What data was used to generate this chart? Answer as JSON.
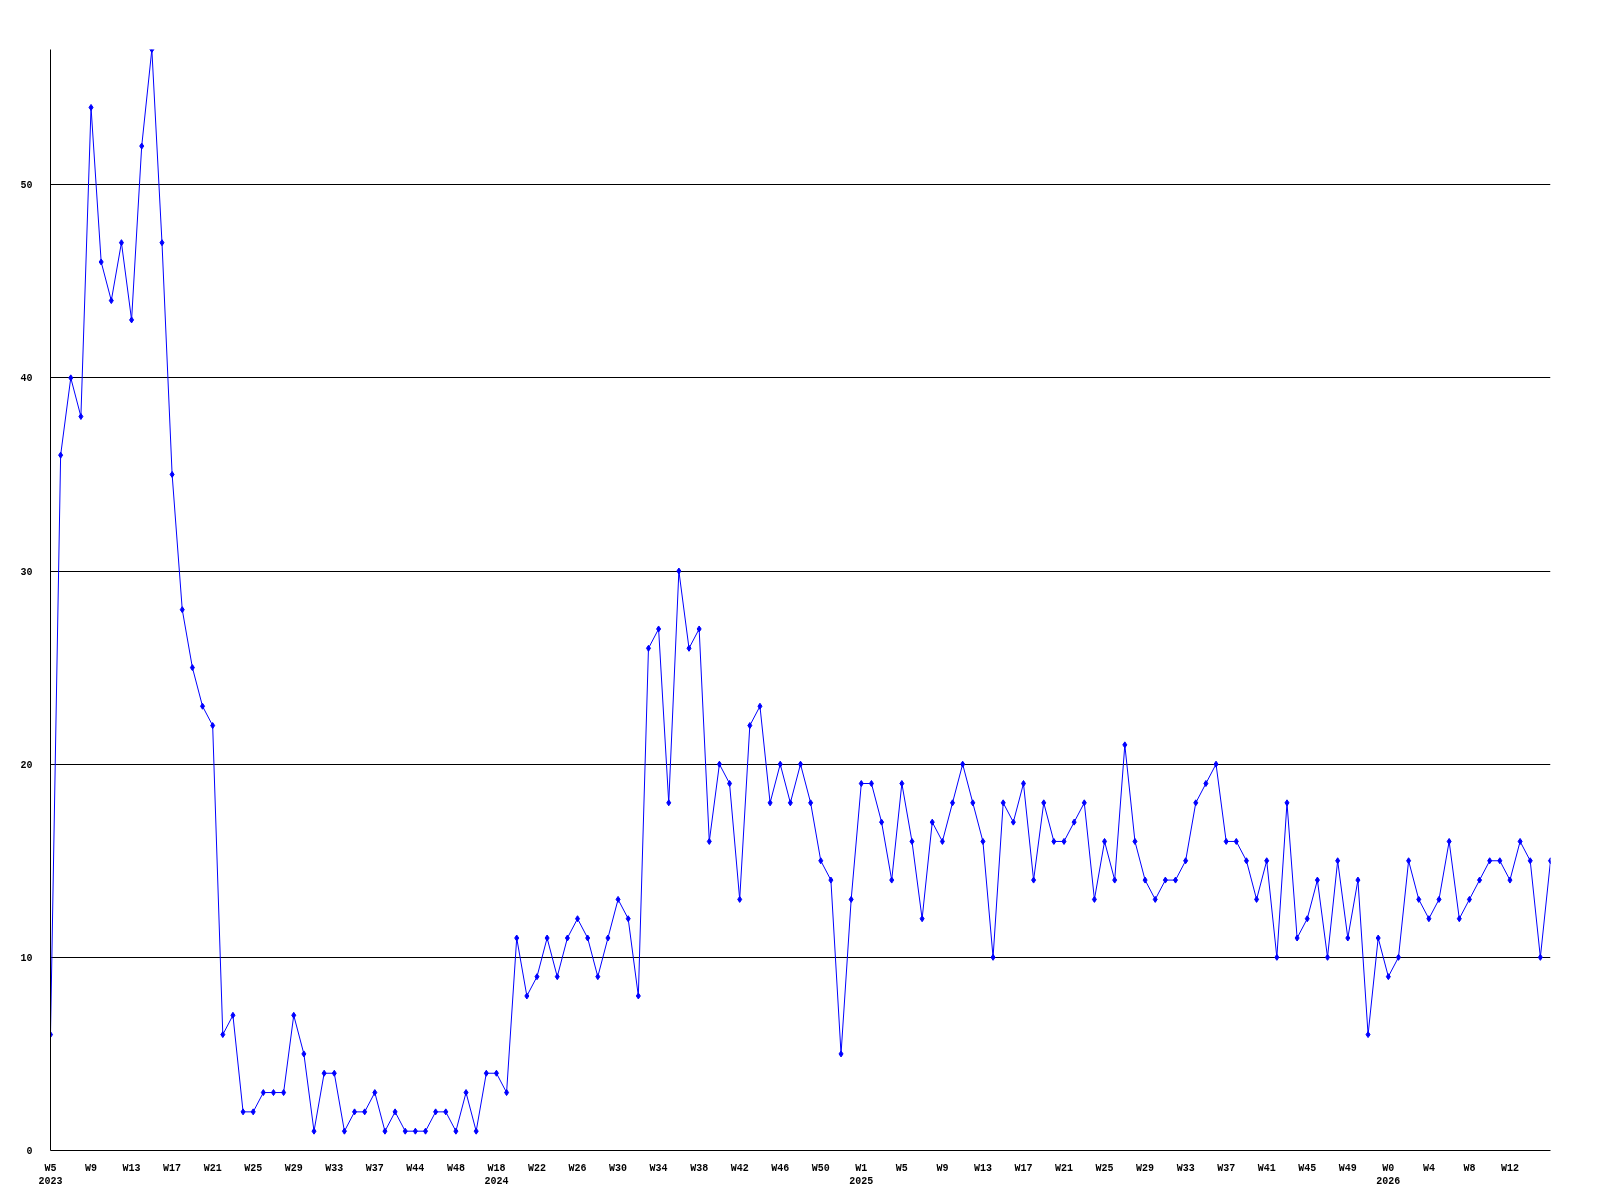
{
  "chart_data": {
    "type": "line",
    "categories": [
      "W5\n2023",
      null,
      null,
      null,
      "W9",
      null,
      null,
      null,
      "W13",
      null,
      null,
      null,
      "W17",
      null,
      null,
      null,
      "W21",
      null,
      null,
      null,
      "W25",
      null,
      null,
      null,
      "W29",
      null,
      null,
      null,
      "W33",
      null,
      null,
      null,
      "W37",
      null,
      null,
      null,
      "W44",
      null,
      null,
      null,
      "W48",
      null,
      null,
      null,
      "W18\n2024",
      null,
      null,
      null,
      "W22",
      null,
      null,
      null,
      "W26",
      null,
      null,
      null,
      "W30",
      null,
      null,
      null,
      "W34",
      null,
      null,
      null,
      "W38",
      null,
      null,
      null,
      "W42",
      null,
      null,
      null,
      "W46",
      null,
      null,
      null,
      "W50",
      null,
      null,
      null,
      "W1\n2025",
      null,
      null,
      null,
      "W5",
      null,
      null,
      null,
      "W9",
      null,
      null,
      null,
      "W13",
      null,
      null,
      null,
      "W17",
      null,
      null,
      null,
      "W21",
      null,
      null,
      null,
      "W25",
      null,
      null,
      null,
      "W29",
      null,
      null,
      null,
      "W33",
      null,
      null,
      null,
      "W37",
      null,
      null,
      null,
      "W41",
      null,
      null,
      null,
      "W45",
      null,
      null,
      null,
      "W49",
      null,
      null,
      null,
      "W0\n2026",
      null,
      null,
      null,
      "W4",
      null,
      null,
      null,
      "W8",
      null,
      null,
      null,
      "W12",
      null,
      null,
      null,
      null
    ],
    "values": [
      6,
      36,
      40,
      38,
      54,
      46,
      44,
      47,
      43,
      52,
      57,
      47,
      35,
      28,
      25,
      23,
      22,
      6,
      7,
      2,
      2,
      3,
      3,
      3,
      7,
      5,
      1,
      4,
      4,
      1,
      2,
      2,
      3,
      1,
      2,
      1,
      1,
      1,
      2,
      2,
      1,
      3,
      1,
      4,
      4,
      3,
      11,
      8,
      9,
      11,
      9,
      11,
      12,
      11,
      9,
      11,
      13,
      12,
      8,
      26,
      27,
      18,
      30,
      26,
      27,
      16,
      20,
      19,
      13,
      22,
      23,
      18,
      20,
      18,
      20,
      18,
      15,
      14,
      5,
      13,
      19,
      19,
      17,
      14,
      19,
      16,
      12,
      17,
      16,
      18,
      20,
      18,
      16,
      10,
      18,
      17,
      19,
      14,
      18,
      16,
      16,
      17,
      18,
      13,
      16,
      14,
      21,
      16,
      14,
      13,
      14,
      14,
      15,
      18,
      19,
      20,
      16,
      16,
      15,
      13,
      15,
      10,
      18,
      11,
      12,
      14,
      10,
      15,
      11,
      14,
      6,
      11,
      9,
      10,
      15,
      13,
      12,
      13,
      16,
      12,
      13,
      14,
      15,
      15,
      14,
      16,
      15,
      10,
      15
    ],
    "color": "#0000ff",
    "ylim": [
      0,
      57
    ],
    "yticks": [
      0,
      10,
      20,
      30,
      40,
      50
    ],
    "grid": "y",
    "marker": "diamond",
    "line_style": "solid"
  }
}
